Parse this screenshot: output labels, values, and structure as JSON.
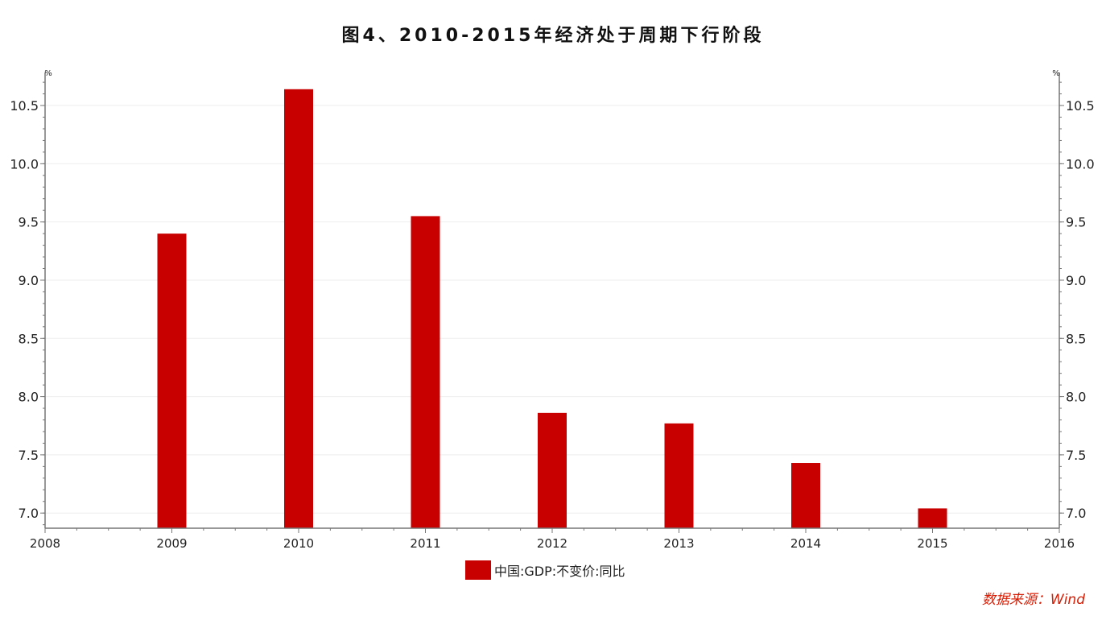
{
  "title": "图4、2010-2015年经济处于周期下行阶段",
  "source_text": "数据来源：Wind",
  "colors": {
    "bar": "#c90000",
    "source": "#d81e06",
    "axis": "#777777",
    "grid": "#eeeeee"
  },
  "chart_data": {
    "type": "bar",
    "title": "图4、2010-2015年经济处于周期下行阶段",
    "xlabel": "",
    "ylabel": "%",
    "y_unit_label": "%",
    "x_ticks": [
      "2008",
      "2009",
      "2010",
      "2011",
      "2012",
      "2013",
      "2014",
      "2015",
      "2016"
    ],
    "xlim": [
      2008,
      2016
    ],
    "y_ticks": [
      "7.0",
      "7.5",
      "8.0",
      "8.5",
      "9.0",
      "9.5",
      "10.0",
      "10.5"
    ],
    "ylim": [
      6.87,
      10.77
    ],
    "grid": true,
    "dual_y_axis": true,
    "legend_position": "bottom",
    "series": [
      {
        "name": "中国:GDP:不变价:同比",
        "x": [
          2009,
          2010,
          2011,
          2012,
          2013,
          2014,
          2015
        ],
        "values": [
          9.4,
          10.64,
          9.55,
          7.86,
          7.77,
          7.43,
          7.04
        ]
      }
    ]
  }
}
